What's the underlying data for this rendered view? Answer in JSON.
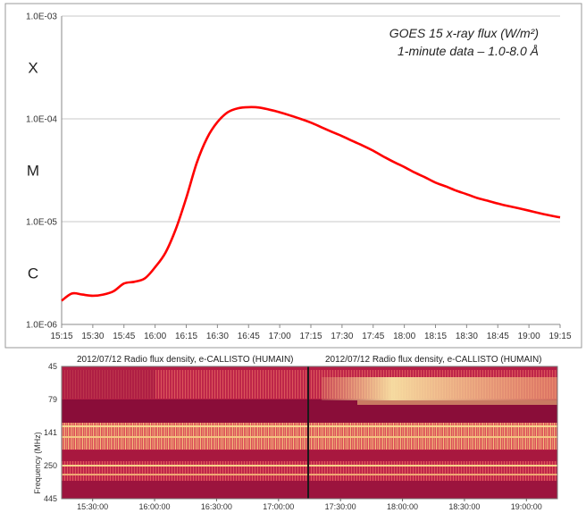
{
  "chart_data": [
    {
      "type": "line",
      "title": "",
      "annotation_lines": [
        "GOES 15 x-ray flux (W/m²)",
        "1-minute data – 1.0-8.0 Å"
      ],
      "xlabel": "",
      "ylabel": "",
      "yscale": "log",
      "ylim": [
        1e-06,
        0.001
      ],
      "y_tick_labels": [
        "1.0E-03",
        "1.0E-04",
        "1.0E-05",
        "1.0E-06"
      ],
      "flare_classes": [
        "X",
        "M",
        "C"
      ],
      "x_tick_labels": [
        "15:15",
        "15:30",
        "15:45",
        "16:00",
        "16:15",
        "16:30",
        "16:45",
        "17:00",
        "17:15",
        "17:30",
        "17:45",
        "18:00",
        "18:15",
        "18:30",
        "18:45",
        "19:00",
        "19:15"
      ],
      "grid": true,
      "line_color": "#ff0000",
      "series": [
        {
          "x": [
            "15:15",
            "15:20",
            "15:25",
            "15:30",
            "15:35",
            "15:40",
            "15:45",
            "15:50",
            "15:55",
            "16:00",
            "16:05",
            "16:10",
            "16:15",
            "16:20",
            "16:25",
            "16:30",
            "16:35",
            "16:40",
            "16:45",
            "16:50",
            "16:55",
            "17:00",
            "17:05",
            "17:10",
            "17:15",
            "17:20",
            "17:25",
            "17:30",
            "17:35",
            "17:40",
            "17:45",
            "17:50",
            "17:55",
            "18:00",
            "18:05",
            "18:10",
            "18:15",
            "18:20",
            "18:25",
            "18:30",
            "18:35",
            "18:40",
            "18:45",
            "18:50",
            "18:55",
            "19:00",
            "19:05",
            "19:10",
            "19:15"
          ],
          "y": [
            1.7e-06,
            2e-06,
            1.95e-06,
            1.9e-06,
            1.95e-06,
            2.1e-06,
            2.5e-06,
            2.6e-06,
            2.8e-06,
            3.6e-06,
            5e-06,
            8.5e-06,
            1.7e-05,
            3.7e-05,
            6.5e-05,
            9.3e-05,
            0.000116,
            0.000127,
            0.00013,
            0.000129,
            0.000123,
            0.000116,
            0.000108,
            0.0001,
            9.2e-05,
            8.3e-05,
            7.5e-05,
            6.8e-05,
            6.1e-05,
            5.5e-05,
            4.9e-05,
            4.3e-05,
            3.8e-05,
            3.4e-05,
            3e-05,
            2.7e-05,
            2.4e-05,
            2.2e-05,
            2e-05,
            1.85e-05,
            1.7e-05,
            1.6e-05,
            1.5e-05,
            1.42e-05,
            1.35e-05,
            1.28e-05,
            1.21e-05,
            1.15e-05,
            1.1e-05
          ]
        }
      ]
    },
    {
      "type": "heatmap",
      "panels": [
        {
          "title": "2012/07/12  Radio flux density, e-CALLISTO (HUMAIN)"
        },
        {
          "title": "2012/07/12  Radio flux density, e-CALLISTO (HUMAIN)"
        }
      ],
      "ylabel": "Frequency (MHz)",
      "y_tick_labels": [
        "45",
        "79",
        "141",
        "250",
        "445"
      ],
      "x_tick_labels": [
        "15:30:00",
        "16:00:00",
        "16:30:00",
        "17:00:00",
        "17:30:00",
        "18:00:00",
        "18:30:00",
        "19:00:00"
      ],
      "colors": {
        "background": "#b01a43",
        "band": "#8b0d3a",
        "bright": "#f4cf86",
        "mid": "#e1666a"
      }
    }
  ]
}
